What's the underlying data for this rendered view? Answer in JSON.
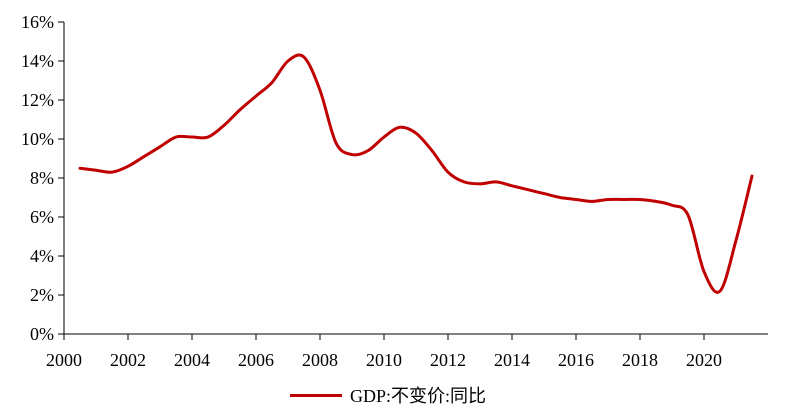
{
  "chart_data": {
    "type": "line",
    "title": "",
    "xlabel": "",
    "ylabel": "",
    "x_ticks": [
      "2000",
      "2002",
      "2004",
      "2006",
      "2008",
      "2010",
      "2012",
      "2014",
      "2016",
      "2018",
      "2020"
    ],
    "y_ticks": [
      "0%",
      "2%",
      "4%",
      "6%",
      "8%",
      "10%",
      "12%",
      "14%",
      "16%"
    ],
    "xlim": [
      2000,
      2022
    ],
    "ylim": [
      0,
      16
    ],
    "grid": false,
    "legend_position": "bottom-center",
    "series": [
      {
        "name": "GDP:不变价:同比",
        "color": "#c00000",
        "x": [
          2000.5,
          2001.0,
          2001.5,
          2002.0,
          2002.5,
          2003.0,
          2003.5,
          2004.0,
          2004.5,
          2005.0,
          2005.5,
          2006.0,
          2006.5,
          2007.0,
          2007.5,
          2008.0,
          2008.5,
          2009.0,
          2009.5,
          2010.0,
          2010.5,
          2011.0,
          2011.5,
          2012.0,
          2012.5,
          2013.0,
          2013.5,
          2014.0,
          2014.5,
          2015.0,
          2015.5,
          2016.0,
          2016.5,
          2017.0,
          2017.5,
          2018.0,
          2018.5,
          2019.0,
          2019.5,
          2020.0,
          2020.5,
          2021.0,
          2021.5
        ],
        "y": [
          8.5,
          8.4,
          8.3,
          8.6,
          9.1,
          9.6,
          10.1,
          10.1,
          10.1,
          10.7,
          11.5,
          12.2,
          12.9,
          14.0,
          14.2,
          12.5,
          9.8,
          9.2,
          9.4,
          10.1,
          10.6,
          10.3,
          9.4,
          8.3,
          7.8,
          7.7,
          7.8,
          7.6,
          7.4,
          7.2,
          7.0,
          6.9,
          6.8,
          6.9,
          6.9,
          6.9,
          6.8,
          6.6,
          6.1,
          3.2,
          2.2,
          4.8,
          8.1
        ]
      }
    ]
  }
}
